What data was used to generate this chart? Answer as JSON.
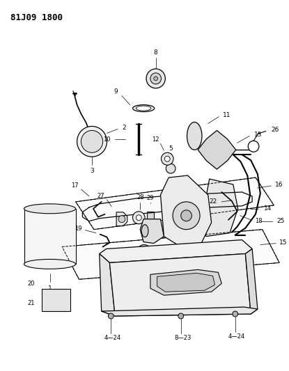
{
  "title": "81J09 1800",
  "bg_color": "#ffffff",
  "line_color": "#000000",
  "title_fontsize": 9
}
